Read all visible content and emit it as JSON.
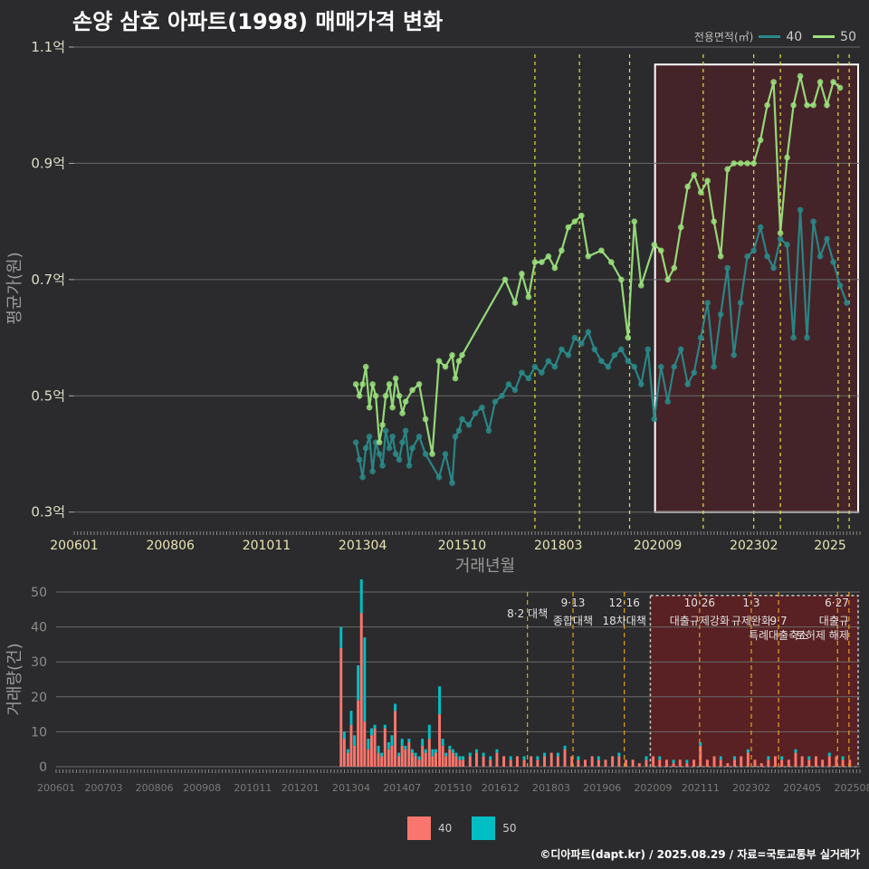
{
  "title": "손양 삼호 아파트(1998) 매매가격 변화",
  "footer": "©디아파트(dapt.kr) / 2025.08.29 / 자료=국토교통부 실거래가",
  "legend": {
    "title": "전용면적(㎡)",
    "items": [
      {
        "name": "40",
        "line_color": "#2a8a8a",
        "bar_color": "#f8766d"
      },
      {
        "name": "50",
        "line_color": "#9be27d",
        "bar_color": "#00bfc4"
      }
    ]
  },
  "chart_data": [
    {
      "type": "line",
      "ylabel": "평균가(원)",
      "xlabel": "거래년월",
      "ylim": [
        0.27,
        1.1
      ],
      "xlim": [
        2006.0,
        2025.75
      ],
      "y_ticks": [
        {
          "v": 0.3,
          "label": "0.3억"
        },
        {
          "v": 0.5,
          "label": "0.5억"
        },
        {
          "v": 0.7,
          "label": "0.7억"
        },
        {
          "v": 0.9,
          "label": "0.9억"
        },
        {
          "v": 1.1,
          "label": "1.1억"
        }
      ],
      "x_ticks": [
        "200601",
        "200806",
        "201011",
        "201304",
        "201510",
        "201803",
        "202009",
        "202302",
        "2025"
      ],
      "policy_lines": [
        2017.58,
        2018.7,
        2019.96,
        2021.81,
        2023.08,
        2023.75,
        2025.2,
        2025.48
      ],
      "highlight_range": [
        2020.6,
        2025.75
      ],
      "series": [
        {
          "name": "40",
          "color": "#2a8a8a",
          "x": [
            2013.08,
            2013.17,
            2013.25,
            2013.33,
            2013.42,
            2013.5,
            2013.58,
            2013.67,
            2013.75,
            2013.83,
            2013.92,
            2014.0,
            2014.08,
            2014.17,
            2014.25,
            2014.33,
            2014.42,
            2014.5,
            2014.67,
            2014.83,
            2015.17,
            2015.33,
            2015.5,
            2015.58,
            2015.67,
            2015.75,
            2015.92,
            2016.08,
            2016.25,
            2016.42,
            2016.58,
            2016.75,
            2016.92,
            2017.08,
            2017.25,
            2017.42,
            2017.58,
            2017.75,
            2017.92,
            2018.08,
            2018.25,
            2018.42,
            2018.58,
            2018.75,
            2018.92,
            2019.08,
            2019.25,
            2019.42,
            2019.58,
            2019.75,
            2019.92,
            2020.08,
            2020.25,
            2020.42,
            2020.58,
            2020.75,
            2020.92,
            2021.08,
            2021.25,
            2021.42,
            2021.58,
            2021.75,
            2021.92,
            2022.08,
            2022.25,
            2022.42,
            2022.58,
            2022.75,
            2022.92,
            2023.08,
            2023.25,
            2023.42,
            2023.58,
            2023.75,
            2023.92,
            2024.08,
            2024.25,
            2024.42,
            2024.58,
            2024.75,
            2024.92,
            2025.08,
            2025.25,
            2025.42
          ],
          "y": [
            0.42,
            0.39,
            0.36,
            0.41,
            0.43,
            0.37,
            0.42,
            0.4,
            0.38,
            0.44,
            0.41,
            0.43,
            0.4,
            0.39,
            0.42,
            0.44,
            0.38,
            0.41,
            0.43,
            0.4,
            0.36,
            0.4,
            0.35,
            0.43,
            0.44,
            0.46,
            0.45,
            0.47,
            0.48,
            0.44,
            0.49,
            0.5,
            0.52,
            0.51,
            0.54,
            0.53,
            0.55,
            0.54,
            0.56,
            0.55,
            0.58,
            0.57,
            0.6,
            0.59,
            0.61,
            0.58,
            0.56,
            0.55,
            0.57,
            0.58,
            0.56,
            0.55,
            0.52,
            0.58,
            0.46,
            0.55,
            0.49,
            0.55,
            0.58,
            0.52,
            0.54,
            0.6,
            0.66,
            0.55,
            0.64,
            0.72,
            0.57,
            0.66,
            0.74,
            0.75,
            0.79,
            0.74,
            0.72,
            0.77,
            0.76,
            0.6,
            0.82,
            0.6,
            0.8,
            0.74,
            0.77,
            0.73,
            0.69,
            0.66
          ]
        },
        {
          "name": "50",
          "color": "#9be27d",
          "x": [
            2013.08,
            2013.17,
            2013.25,
            2013.33,
            2013.42,
            2013.5,
            2013.58,
            2013.67,
            2013.75,
            2013.83,
            2013.92,
            2014.0,
            2014.08,
            2014.17,
            2014.25,
            2014.33,
            2014.5,
            2014.67,
            2014.83,
            2015.0,
            2015.17,
            2015.33,
            2015.5,
            2015.58,
            2015.67,
            2015.75,
            2016.83,
            2017.08,
            2017.25,
            2017.42,
            2017.58,
            2017.75,
            2017.92,
            2018.08,
            2018.25,
            2018.42,
            2018.58,
            2018.75,
            2018.92,
            2019.25,
            2019.5,
            2019.75,
            2019.92,
            2020.08,
            2020.25,
            2020.58,
            2020.75,
            2020.92,
            2021.08,
            2021.25,
            2021.42,
            2021.58,
            2021.75,
            2021.92,
            2022.08,
            2022.25,
            2022.42,
            2022.58,
            2022.75,
            2022.92,
            2023.08,
            2023.25,
            2023.42,
            2023.58,
            2023.75,
            2023.92,
            2024.08,
            2024.25,
            2024.42,
            2024.58,
            2024.75,
            2024.92,
            2025.08,
            2025.25
          ],
          "y": [
            0.52,
            0.5,
            0.52,
            0.55,
            0.48,
            0.52,
            0.5,
            0.42,
            0.45,
            0.5,
            0.52,
            0.48,
            0.53,
            0.5,
            0.47,
            0.49,
            0.51,
            0.52,
            0.46,
            0.4,
            0.56,
            0.55,
            0.57,
            0.53,
            0.56,
            0.57,
            0.7,
            0.66,
            0.71,
            0.67,
            0.73,
            0.73,
            0.74,
            0.72,
            0.75,
            0.79,
            0.8,
            0.81,
            0.74,
            0.75,
            0.73,
            0.7,
            0.6,
            0.8,
            0.69,
            0.76,
            0.75,
            0.7,
            0.72,
            0.79,
            0.86,
            0.88,
            0.85,
            0.87,
            0.8,
            0.74,
            0.89,
            0.9,
            0.9,
            0.9,
            0.9,
            0.94,
            1.0,
            1.04,
            0.78,
            0.91,
            1.0,
            1.05,
            1.0,
            1.0,
            1.04,
            1.0,
            1.04,
            1.03
          ]
        }
      ]
    },
    {
      "type": "bar",
      "ylabel": "거래량(건)",
      "ylim": [
        0,
        50
      ],
      "y_ticks": [
        0,
        10,
        20,
        30,
        40,
        50
      ],
      "x_ticks": [
        "200601",
        "200703",
        "200806",
        "200908",
        "201011",
        "201201",
        "201304",
        "201407",
        "201510",
        "201612",
        "201803",
        "201906",
        "202009",
        "202111",
        "202302",
        "202405",
        "202508"
      ],
      "policy_lines": [
        2017.58,
        2018.7,
        2019.96,
        2021.81,
        2023.08,
        2023.75,
        2025.2,
        2025.48
      ],
      "highlight_range": [
        2020.6,
        2025.75
      ],
      "annotations": [
        {
          "x": 2017.58,
          "row": 1,
          "text": "8·2 대책"
        },
        {
          "x": 2018.7,
          "row": 0,
          "text": "9·13"
        },
        {
          "x": 2018.7,
          "row": 2,
          "text": "종합대책"
        },
        {
          "x": 2019.96,
          "row": 0,
          "text": "12·16"
        },
        {
          "x": 2019.96,
          "row": 2,
          "text": "18차대책"
        },
        {
          "x": 2021.81,
          "row": 0,
          "text": "10·26"
        },
        {
          "x": 2021.81,
          "row": 2,
          "text": "대출규제강화"
        },
        {
          "x": 2023.08,
          "row": 0,
          "text": "1·3"
        },
        {
          "x": 2023.08,
          "row": 2,
          "text": "규제완화"
        },
        {
          "x": 2023.75,
          "row": 2,
          "text": "9·7"
        },
        {
          "x": 2023.75,
          "row": 3,
          "text": "특례대출축소"
        },
        {
          "x": 2025.48,
          "row": 0,
          "text": "6·27"
        },
        {
          "x": 2025.48,
          "row": 2,
          "text": "대출규"
        },
        {
          "x": 2025.48,
          "row": 3,
          "text": "토허제 해제"
        }
      ],
      "series": [
        {
          "name": "40",
          "color": "#f8766d",
          "x": [
            2013.0,
            2013.08,
            2013.17,
            2013.25,
            2013.33,
            2013.42,
            2013.5,
            2013.58,
            2013.67,
            2013.75,
            2013.83,
            2013.92,
            2014.0,
            2014.08,
            2014.17,
            2014.25,
            2014.33,
            2014.42,
            2014.5,
            2014.58,
            2014.67,
            2014.75,
            2014.83,
            2014.92,
            2015.0,
            2015.08,
            2015.17,
            2015.25,
            2015.33,
            2015.42,
            2015.5,
            2015.58,
            2015.67,
            2015.75,
            2015.83,
            2015.92,
            2016.0,
            2016.17,
            2016.33,
            2016.5,
            2016.67,
            2016.83,
            2017.0,
            2017.17,
            2017.33,
            2017.5,
            2017.67,
            2017.83,
            2018.0,
            2018.17,
            2018.33,
            2018.5,
            2018.67,
            2018.83,
            2019.0,
            2019.17,
            2019.33,
            2019.5,
            2019.67,
            2019.83,
            2020.0,
            2020.17,
            2020.33,
            2020.5,
            2020.67,
            2020.83,
            2021.0,
            2021.17,
            2021.33,
            2021.5,
            2021.67,
            2021.83,
            2022.0,
            2022.17,
            2022.33,
            2022.5,
            2022.67,
            2022.83,
            2023.0,
            2023.17,
            2023.33,
            2023.5,
            2023.67,
            2023.83,
            2024.0,
            2024.17,
            2024.33,
            2024.5,
            2024.67,
            2024.83,
            2025.0,
            2025.17,
            2025.33,
            2025.5
          ],
          "y": [
            34,
            8,
            4,
            12,
            6,
            19,
            44,
            13,
            5,
            9,
            11,
            4,
            3,
            11,
            5,
            6,
            16,
            3,
            6,
            5,
            7,
            4,
            3,
            2,
            6,
            4,
            8,
            3,
            4,
            15,
            6,
            3,
            5,
            4,
            3,
            2,
            2,
            3,
            4,
            3,
            2,
            4,
            3,
            2,
            3,
            2,
            3,
            2,
            3,
            4,
            3,
            5,
            3,
            2,
            2,
            3,
            2,
            2,
            3,
            3,
            2,
            2,
            1,
            2,
            3,
            2,
            2,
            1,
            2,
            1,
            2,
            6,
            2,
            3,
            2,
            1,
            2,
            3,
            4,
            2,
            1,
            2,
            3,
            2,
            2,
            4,
            3,
            2,
            3,
            2,
            3,
            3,
            2,
            2
          ]
        },
        {
          "name": "50",
          "color": "#00bfc4",
          "x": [
            2013.0,
            2013.08,
            2013.17,
            2013.25,
            2013.33,
            2013.42,
            2013.5,
            2013.58,
            2013.67,
            2013.75,
            2013.83,
            2013.92,
            2014.0,
            2014.08,
            2014.17,
            2014.25,
            2014.33,
            2014.42,
            2014.5,
            2014.58,
            2014.67,
            2014.75,
            2014.83,
            2014.92,
            2015.0,
            2015.08,
            2015.17,
            2015.25,
            2015.33,
            2015.42,
            2015.5,
            2015.58,
            2015.67,
            2015.75,
            2015.83,
            2015.92,
            2016.0,
            2016.17,
            2016.33,
            2016.5,
            2016.67,
            2016.83,
            2017.0,
            2017.17,
            2017.33,
            2017.5,
            2017.67,
            2017.83,
            2018.0,
            2018.17,
            2018.33,
            2018.5,
            2018.67,
            2018.83,
            2019.0,
            2019.17,
            2019.33,
            2019.5,
            2019.67,
            2019.83,
            2020.0,
            2020.17,
            2020.33,
            2020.5,
            2020.67,
            2020.83,
            2021.0,
            2021.17,
            2021.33,
            2021.5,
            2021.67,
            2021.83,
            2022.0,
            2022.17,
            2022.33,
            2022.5,
            2022.67,
            2022.83,
            2023.0,
            2023.17,
            2023.33,
            2023.5,
            2023.67,
            2023.83,
            2024.0,
            2024.17,
            2024.33,
            2024.5,
            2024.67,
            2024.83,
            2025.0,
            2025.17,
            2025.33,
            2025.5
          ],
          "y": [
            6,
            2,
            1,
            4,
            3,
            10,
            29,
            24,
            3,
            2,
            1,
            2,
            1,
            1,
            2,
            3,
            2,
            1,
            2,
            1,
            1,
            1,
            1,
            1,
            2,
            1,
            4,
            2,
            1,
            8,
            2,
            1,
            1,
            1,
            1,
            1,
            1,
            1,
            1,
            1,
            1,
            1,
            0,
            1,
            0,
            1,
            0,
            1,
            1,
            0,
            1,
            1,
            0,
            1,
            0,
            0,
            1,
            0,
            0,
            1,
            0,
            0,
            0,
            1,
            0,
            1,
            0,
            1,
            0,
            1,
            0,
            1,
            0,
            0,
            1,
            0,
            1,
            0,
            1,
            0,
            0,
            1,
            0,
            1,
            0,
            1,
            0,
            1,
            0,
            0,
            1,
            0,
            1,
            0
          ]
        }
      ]
    }
  ]
}
